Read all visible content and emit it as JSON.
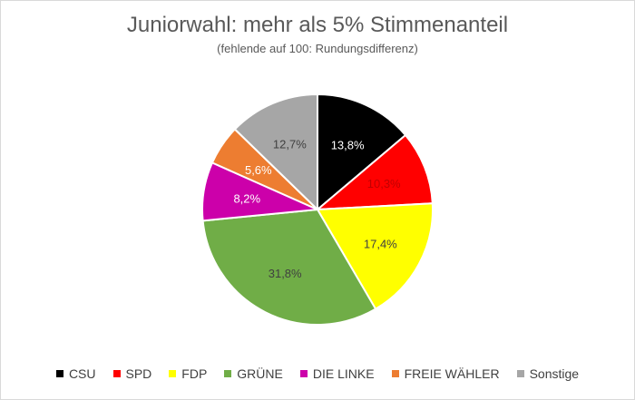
{
  "chart_data": {
    "type": "pie",
    "title": "Juniorwahl: mehr als 5% Stimmenanteil",
    "subtitle": "(fehlende auf 100: Rundungsdifferenz)",
    "categories": [
      "CSU",
      "SPD",
      "FDP",
      "GRÜNE",
      "DIE LINKE",
      "FREIE WÄHLER",
      "Sonstige"
    ],
    "values": [
      13.8,
      10.3,
      17.4,
      31.8,
      8.2,
      5.6,
      12.7
    ],
    "labels": [
      "13,8%",
      "10,3%",
      "17,4%",
      "31,8%",
      "8,2%",
      "5,6%",
      "12,7%"
    ],
    "colors": [
      "#000000",
      "#ff0000",
      "#ffff00",
      "#70ad47",
      "#cc00aa",
      "#ed7d31",
      "#a6a6a6"
    ],
    "label_colors": [
      "#ffffff",
      "#c00000",
      "#404040",
      "#404040",
      "#ffffff",
      "#ffffff",
      "#404040"
    ],
    "legend_position": "bottom"
  }
}
